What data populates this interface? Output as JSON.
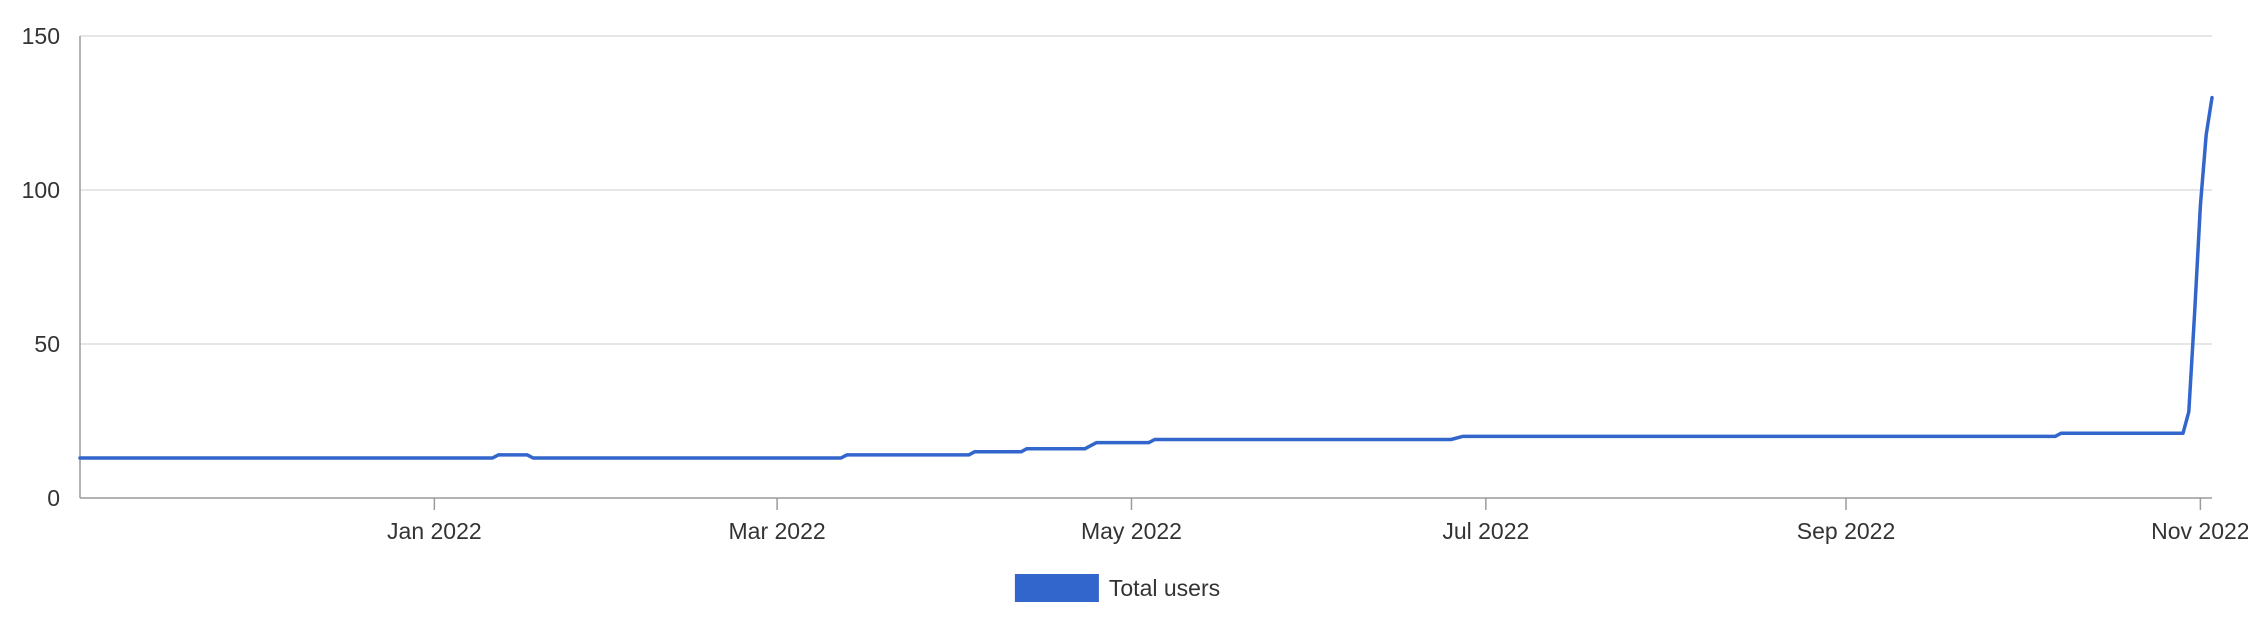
{
  "chart_data": {
    "type": "line",
    "title": "",
    "xlabel": "",
    "ylabel": "",
    "ylim": [
      0,
      150
    ],
    "xlim": [
      "2021-11-01",
      "2022-11-03"
    ],
    "grid": true,
    "legend_position": "bottom-center",
    "y_ticks": [
      0,
      50,
      100,
      150
    ],
    "y_tick_labels": [
      "0",
      "50",
      "100",
      "150"
    ],
    "x_ticks": [
      {
        "date": "2022-01-01",
        "label": "Jan 2022"
      },
      {
        "date": "2022-03-01",
        "label": "Mar 2022"
      },
      {
        "date": "2022-05-01",
        "label": "May 2022"
      },
      {
        "date": "2022-07-01",
        "label": "Jul 2022"
      },
      {
        "date": "2022-09-01",
        "label": "Sep 2022"
      },
      {
        "date": "2022-11-01",
        "label": "Nov 2022"
      }
    ],
    "series": [
      {
        "name": "Total users",
        "color": "#3366cc",
        "points": [
          [
            "2021-11-01",
            13
          ],
          [
            "2022-01-11",
            13
          ],
          [
            "2022-01-12",
            14
          ],
          [
            "2022-01-17",
            14
          ],
          [
            "2022-01-18",
            13
          ],
          [
            "2022-03-12",
            13
          ],
          [
            "2022-03-13",
            14
          ],
          [
            "2022-04-03",
            14
          ],
          [
            "2022-04-04",
            15
          ],
          [
            "2022-04-12",
            15
          ],
          [
            "2022-04-13",
            16
          ],
          [
            "2022-04-23",
            16
          ],
          [
            "2022-04-25",
            18
          ],
          [
            "2022-05-04",
            18
          ],
          [
            "2022-05-05",
            19
          ],
          [
            "2022-06-25",
            19
          ],
          [
            "2022-06-27",
            20
          ],
          [
            "2022-10-07",
            20
          ],
          [
            "2022-10-08",
            21
          ],
          [
            "2022-10-29",
            21
          ],
          [
            "2022-10-30",
            28
          ],
          [
            "2022-10-31",
            60
          ],
          [
            "2022-11-01",
            95
          ],
          [
            "2022-11-02",
            118
          ],
          [
            "2022-11-03",
            130
          ]
        ]
      }
    ]
  }
}
